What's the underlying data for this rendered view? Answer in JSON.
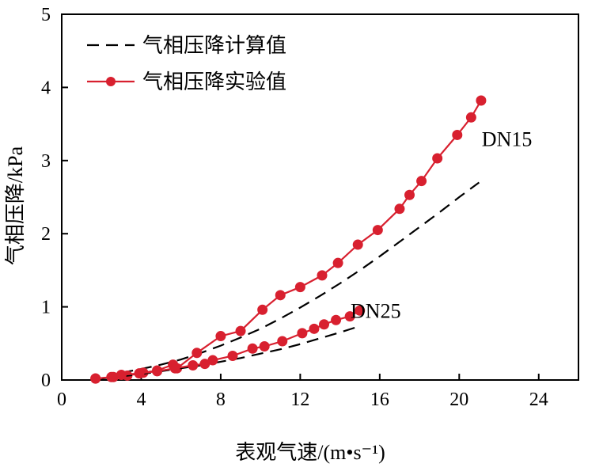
{
  "chart_data": {
    "type": "line",
    "title": "",
    "xlabel": "表观气速/(m•s⁻¹)",
    "ylabel": "气相压降/kPa",
    "xlim": [
      0,
      26
    ],
    "ylim": [
      0,
      5
    ],
    "xticks": [
      0,
      4,
      8,
      12,
      16,
      20,
      24
    ],
    "yticks": [
      0,
      1,
      2,
      3,
      4,
      5
    ],
    "grid": false,
    "legend_placement": "top-left",
    "legend": [
      {
        "label": "气相压降计算值",
        "style": "dashed"
      },
      {
        "label": "气相压降实验值",
        "style": "line-marker"
      }
    ],
    "annotations": [
      {
        "text": "DN15",
        "x": 22.4,
        "y": 3.2
      },
      {
        "text": "DN25",
        "x": 15.8,
        "y": 0.85
      }
    ],
    "series": [
      {
        "group": "DN15",
        "kind": "calculated",
        "x": [
          3.0,
          4.0,
          5.0,
          6.0,
          7.0,
          8.0,
          9.0,
          10.0,
          11.0,
          12.0,
          13.0,
          14.0,
          15.0,
          16.0,
          17.0,
          18.0,
          19.0,
          20.0,
          21.0
        ],
        "y": [
          0.1,
          0.15,
          0.21,
          0.28,
          0.37,
          0.47,
          0.58,
          0.7,
          0.84,
          0.99,
          1.15,
          1.32,
          1.5,
          1.69,
          1.89,
          2.09,
          2.29,
          2.5,
          2.7
        ]
      },
      {
        "group": "DN15",
        "kind": "experimental",
        "x": [
          1.7,
          2.6,
          3.3,
          4.1,
          4.8,
          5.6,
          5.8,
          6.8,
          8.0,
          9.0,
          10.1,
          11.0,
          12.0,
          13.1,
          13.9,
          14.9,
          15.9,
          17.0,
          17.5,
          18.1,
          18.9,
          19.9,
          20.6,
          21.1
        ],
        "y": [
          0.02,
          0.04,
          0.06,
          0.1,
          0.13,
          0.21,
          0.16,
          0.37,
          0.6,
          0.67,
          0.96,
          1.16,
          1.27,
          1.43,
          1.6,
          1.85,
          2.05,
          2.34,
          2.53,
          2.72,
          3.03,
          3.35,
          3.59,
          3.82
        ]
      },
      {
        "group": "DN25",
        "kind": "calculated",
        "x": [
          2.0,
          3.0,
          4.0,
          5.0,
          6.0,
          7.0,
          8.0,
          9.0,
          10.0,
          11.0,
          12.0,
          13.0,
          14.0,
          14.8
        ],
        "y": [
          0.02,
          0.05,
          0.08,
          0.12,
          0.16,
          0.2,
          0.25,
          0.3,
          0.36,
          0.42,
          0.49,
          0.57,
          0.65,
          0.72
        ]
      },
      {
        "group": "DN25",
        "kind": "experimental",
        "x": [
          1.7,
          2.5,
          3.0,
          3.9,
          4.8,
          5.7,
          6.6,
          7.2,
          7.6,
          8.6,
          9.6,
          10.2,
          11.1,
          12.1,
          12.7,
          13.2,
          13.8,
          14.5,
          15.0
        ],
        "y": [
          0.02,
          0.04,
          0.07,
          0.09,
          0.12,
          0.16,
          0.2,
          0.22,
          0.27,
          0.33,
          0.43,
          0.46,
          0.53,
          0.64,
          0.7,
          0.76,
          0.82,
          0.87,
          0.95
        ]
      }
    ]
  }
}
